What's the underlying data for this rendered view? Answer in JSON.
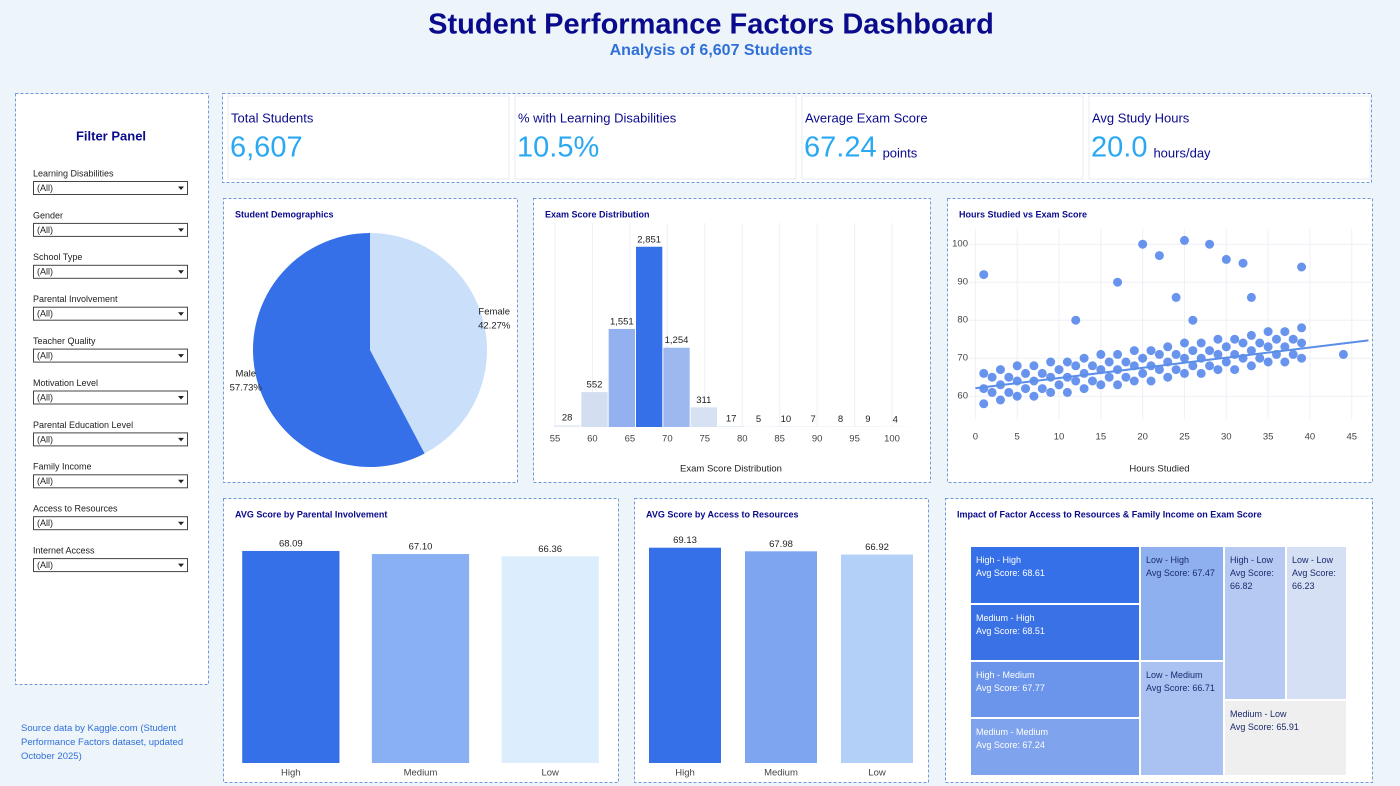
{
  "header": {
    "title": "Student Performance Factors Dashboard",
    "subtitle": "Analysis of 6,607 Students"
  },
  "filter_panel": {
    "title": "Filter Panel",
    "filters": [
      {
        "label": "Learning Disabilities",
        "value": "(All)"
      },
      {
        "label": "Gender",
        "value": "(All)"
      },
      {
        "label": "School Type",
        "value": "(All)"
      },
      {
        "label": "Parental Involvement",
        "value": "(All)"
      },
      {
        "label": "Teacher Quality",
        "value": "(All)"
      },
      {
        "label": "Motivation Level",
        "value": "(All)"
      },
      {
        "label": "Parental Education Level",
        "value": "(All)"
      },
      {
        "label": "Family Income",
        "value": "(All)"
      },
      {
        "label": "Access to Resources",
        "value": "(All)"
      },
      {
        "label": "Internet Access",
        "value": "(All)"
      }
    ]
  },
  "source_note": "Source data by Kaggle.com (Student Performance Factors dataset, updated October 2025)",
  "kpis": [
    {
      "label": "Total Students",
      "value": "6,607"
    },
    {
      "label": "% with Learning Disabilities",
      "value": "10.5%"
    },
    {
      "label": "Average Exam Score",
      "value": "67.24",
      "unit": "points"
    },
    {
      "label": "Avg Study Hours",
      "value": "20.0",
      "unit": "hours/day"
    }
  ],
  "chart_data": [
    {
      "type": "pie",
      "title": "Student Demographics",
      "categories": [
        "Female",
        "Male"
      ],
      "values": [
        42.27,
        57.73
      ],
      "value_labels": [
        "42.27%",
        "57.73%"
      ],
      "colors": [
        "#c9dffa",
        "#3570e8"
      ]
    },
    {
      "type": "histogram",
      "title": "Exam Score Distribution",
      "x_label": "Exam Score Distribution",
      "bins": [
        54.8,
        58.45,
        62.1,
        65.75,
        69.4,
        73.05,
        76.7,
        80.35,
        84,
        87.65,
        91.3,
        94.95,
        98.6,
        102.25
      ],
      "values": [
        28,
        552,
        1551,
        2851,
        1254,
        311,
        17,
        5,
        10,
        7,
        8,
        9,
        4
      ],
      "value_labels": [
        "28",
        "552",
        "1,551",
        "2,851",
        "1,254",
        "311",
        "17",
        "5",
        "10",
        "7",
        "8",
        "9",
        "4"
      ],
      "colors": [
        "#e3ebf7",
        "#d3def3",
        "#93b1ee",
        "#3570e8",
        "#9db8ef",
        "#d6e1f4",
        "#e3ebf7",
        "#e3ebf7",
        "#e3ebf7",
        "#e3ebf7",
        "#e3ebf7",
        "#e3ebf7",
        "#e3ebf7"
      ],
      "xlim": [
        53,
        104
      ],
      "ylim": [
        0,
        3100
      ],
      "xticks": [
        55,
        60,
        65,
        70,
        75,
        80,
        85,
        90,
        95,
        100
      ],
      "grid": true
    },
    {
      "type": "scatter",
      "title": "Hours Studied vs Exam Score",
      "x_label": "Hours Studied",
      "color": "#3570e8",
      "x": [
        1,
        1,
        1,
        3,
        3,
        3,
        5,
        5,
        5,
        7,
        7,
        7,
        9,
        9,
        9,
        11,
        11,
        11,
        13,
        13,
        13,
        15,
        15,
        15,
        17,
        17,
        17,
        19,
        19,
        19,
        21,
        21,
        21,
        23,
        23,
        23,
        25,
        25,
        25,
        27,
        27,
        27,
        29,
        29,
        29,
        31,
        31,
        31,
        33,
        33,
        33,
        35,
        35,
        35,
        37,
        37,
        37,
        39,
        39,
        39,
        1,
        20,
        22,
        25,
        28,
        30,
        32,
        17,
        24,
        33,
        26,
        12,
        44,
        39,
        2,
        2,
        4,
        4,
        6,
        6,
        8,
        8,
        10,
        10,
        12,
        12,
        14,
        14,
        16,
        16,
        18,
        18,
        20,
        20,
        22,
        22,
        24,
        24,
        26,
        26,
        28,
        28,
        30,
        30,
        32,
        32,
        34,
        34,
        36,
        36,
        38,
        38
      ],
      "y": [
        62,
        66,
        58,
        63,
        67,
        59,
        64,
        68,
        60,
        64,
        68,
        60,
        65,
        69,
        61,
        65,
        69,
        61,
        66,
        70,
        62,
        67,
        71,
        63,
        67,
        71,
        63,
        68,
        72,
        64,
        68,
        72,
        64,
        69,
        73,
        65,
        70,
        74,
        66,
        70,
        74,
        66,
        71,
        75,
        67,
        71,
        75,
        67,
        72,
        76,
        68,
        73,
        77,
        69,
        73,
        77,
        69,
        74,
        78,
        70,
        92,
        100,
        97,
        101,
        100,
        96,
        95,
        90,
        86,
        86,
        80,
        80,
        71,
        94,
        65,
        61,
        65,
        61,
        66,
        62,
        66,
        62,
        67,
        63,
        68,
        64,
        68,
        64,
        69,
        65,
        69,
        65,
        70,
        66,
        71,
        67,
        71,
        67,
        72,
        68,
        72,
        68,
        73,
        69,
        74,
        70,
        74,
        70,
        75,
        71,
        75,
        71
      ],
      "trend": {
        "x": [
          0,
          47
        ],
        "y": [
          62.1,
          74.7
        ],
        "color": "#5b8ee8"
      },
      "xlim": [
        -1,
        47.3
      ],
      "ylim": [
        54,
        104
      ],
      "xticks": [
        0,
        5,
        10,
        15,
        20,
        25,
        30,
        35,
        40,
        45
      ],
      "yticks": [
        60,
        70,
        80,
        90,
        100
      ],
      "grid": true
    },
    {
      "type": "bar",
      "title": "AVG Score by Parental Involvement",
      "categories": [
        "High",
        "Medium",
        "Low"
      ],
      "values": [
        68.09,
        67.1,
        66.36
      ],
      "value_labels": [
        "68.09",
        "67.10",
        "66.36"
      ],
      "colors": [
        "#3570e8",
        "#8ab0f4",
        "#dcedfd"
      ],
      "ylim": [
        0,
        70
      ]
    },
    {
      "type": "bar",
      "title": "AVG Score by Access to Resources",
      "categories": [
        "High",
        "Medium",
        "Low"
      ],
      "values": [
        69.13,
        67.98,
        66.92
      ],
      "value_labels": [
        "69.13",
        "67.98",
        "66.92"
      ],
      "colors": [
        "#3570e8",
        "#7ea6f0",
        "#b3d0f8"
      ],
      "ylim": [
        0,
        70
      ]
    },
    {
      "type": "treemap",
      "title": "Impact of Factor Access to Resources & Family Income on Exam Score",
      "nodes": [
        {
          "name": "High - High",
          "value": 68.61,
          "value_label": "Avg Score: 68.61",
          "color": "#3570e8"
        },
        {
          "name": "Medium - High",
          "value": 68.51,
          "value_label": "Avg Score: 68.51",
          "color": "#3a72e6"
        },
        {
          "name": "High - Medium",
          "value": 67.77,
          "value_label": "Avg Score: 67.77",
          "color": "#6a95ea"
        },
        {
          "name": "Medium - Medium",
          "value": 67.24,
          "value_label": "Avg Score: 67.24",
          "color": "#7fa3ec"
        },
        {
          "name": "Low - High",
          "value": 67.47,
          "value_label": "Avg Score: 67.47",
          "color": "#8fb0ef"
        },
        {
          "name": "Low - Medium",
          "value": 66.71,
          "value_label": "Avg Score: 66.71",
          "color": "#a9c2f2"
        },
        {
          "name": "High - Low",
          "value": 66.82,
          "value_label": "Avg Score: 66.82",
          "color": "#b5c9f3"
        },
        {
          "name": "Low - Low",
          "value": 66.23,
          "value_label": "Avg Score: 66.23",
          "color": "#d6e0f4"
        },
        {
          "name": "Medium - Low",
          "value": 65.91,
          "value_label": "Avg Score: 65.91",
          "color": "#efefef"
        }
      ]
    }
  ]
}
